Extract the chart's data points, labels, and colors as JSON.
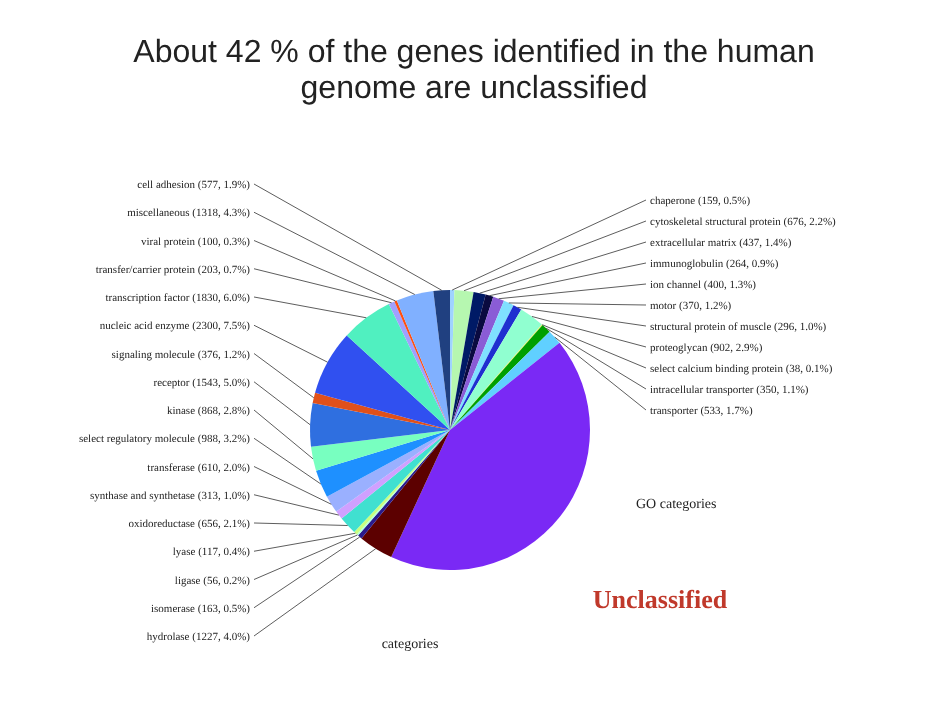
{
  "chart_data": {
    "type": "pie",
    "title": "About 42 % of the genes identified in the human genome are unclassified",
    "categories": [
      "chaperone (159, 0.5%)",
      "cytoskeletal structural protein (676, 2.2%)",
      "extracellular matrix (437, 1.4%)",
      "immunoglobulin (264, 0.9%)",
      "ion channel (400, 1.3%)",
      "motor (370, 1.2%)",
      "structural protein of muscle (296, 1.0%)",
      "proteoglycan (902, 2.9%)",
      "select calcium binding protein (38, 0.1%)",
      "intracellular transporter (350, 1.1%)",
      "transporter (533, 1.7%)",
      "Unclassified",
      "hydrolase (1227, 4.0%)",
      "isomerase (163, 0.5%)",
      "ligase (56, 0.2%)",
      "lyase (117, 0.4%)",
      "oxidoreductase (656, 2.1%)",
      "synthase and synthetase (313, 1.0%)",
      "transferase (610, 2.0%)",
      "select regulatory molecule (988, 3.2%)",
      "kinase (868, 2.8%)",
      "receptor (1543, 5.0%)",
      "signaling molecule (376, 1.2%)",
      "nucleic acid enzyme (2300, 7.5%)",
      "transcription factor (1830, 6.0%)",
      "transfer/carrier protein (203, 0.7%)",
      "viral protein (100, 0.3%)",
      "miscellaneous (1318, 4.3%)",
      "cell adhesion (577, 1.9%)"
    ],
    "values": [
      0.5,
      2.2,
      1.4,
      0.9,
      1.3,
      1.2,
      1.0,
      2.9,
      0.1,
      1.1,
      1.7,
      42.6,
      4.0,
      0.5,
      0.2,
      0.4,
      2.1,
      1.0,
      2.0,
      3.2,
      2.8,
      5.0,
      1.2,
      7.5,
      6.0,
      0.7,
      0.3,
      4.3,
      1.9
    ],
    "colors": [
      "#9fd3ff",
      "#b6f7b0",
      "#001a66",
      "#0a0a40",
      "#8a5cd6",
      "#7fe0ff",
      "#1f2fd0",
      "#90ffd0",
      "#ffef5c",
      "#00a000",
      "#60d0ff",
      "#7a29f5",
      "#5c0000",
      "#2a1a8c",
      "#b0ffe0",
      "#c8ff80",
      "#40e0d0",
      "#d0a0ff",
      "#9ab0ff",
      "#1e90ff",
      "#78ffc0",
      "#2f6fe0",
      "#e0501a",
      "#3050f0",
      "#50f0c0",
      "#a0a0ff",
      "#ff5010",
      "#80b0ff",
      "#204080"
    ],
    "annotations": [
      "GO categories",
      "categories"
    ]
  }
}
